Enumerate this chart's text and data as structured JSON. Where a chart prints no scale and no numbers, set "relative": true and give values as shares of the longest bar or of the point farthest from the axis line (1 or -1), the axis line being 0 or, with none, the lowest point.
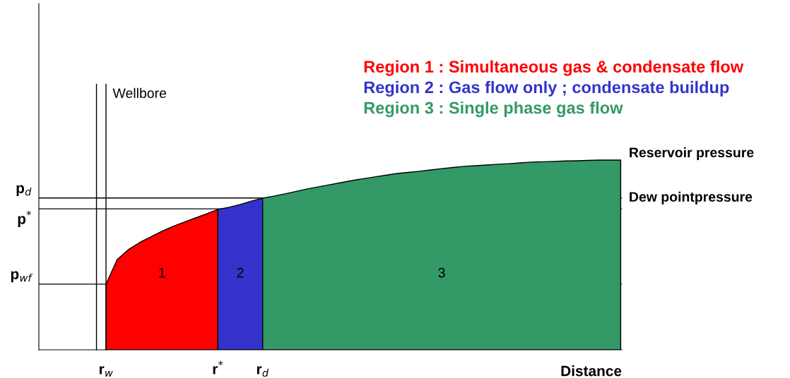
{
  "chart_data": {
    "type": "area",
    "relative": true,
    "xlabel": "Distance",
    "legend": "top right",
    "categories": [
      null,
      null,
      null,
      null,
      null,
      null,
      "r$_{w}$",
      null,
      null,
      null,
      null,
      null,
      null,
      null,
      null,
      null,
      "r$^{*}$",
      null,
      null,
      null,
      "r$_{d}$",
      null,
      null,
      null,
      null,
      null,
      null,
      null,
      null,
      null,
      null,
      null,
      null,
      null,
      null,
      null,
      null,
      null,
      null,
      null,
      null,
      null,
      null,
      null,
      null,
      null,
      null,
      null,
      null,
      null,
      null,
      null,
      null
    ],
    "series": [
      {
        "name": "Region 1 : Simultaneous gas & condensate flow",
        "color": "#ff0000",
        "values": [
          null,
          null,
          null,
          null,
          null,
          null,
          0.346,
          0.476,
          0.528,
          0.565,
          0.595,
          0.625,
          0.651,
          0.673,
          0.695,
          0.717,
          0.74,
          null,
          null,
          null,
          null,
          null,
          null,
          null,
          null,
          null,
          null,
          null,
          null,
          null,
          null,
          null,
          null,
          null,
          null,
          null,
          null,
          null,
          null,
          null,
          null,
          null,
          null,
          null,
          null,
          null,
          null,
          null,
          null,
          null,
          null,
          null,
          null
        ]
      },
      {
        "name": "Region 2 : Gas flow only ; condensate buildup",
        "color": "#3333cc",
        "values": [
          null,
          null,
          null,
          null,
          null,
          null,
          null,
          null,
          null,
          null,
          null,
          null,
          null,
          null,
          null,
          null,
          0.74,
          0.751,
          0.766,
          0.784,
          0.799,
          null,
          null,
          null,
          null,
          null,
          null,
          null,
          null,
          null,
          null,
          null,
          null,
          null,
          null,
          null,
          null,
          null,
          null,
          null,
          null,
          null,
          null,
          null,
          null,
          null,
          null,
          null,
          null,
          null,
          null,
          null,
          null
        ]
      },
      {
        "name": "Region 3 : Single phase gas flow",
        "color": "#339966",
        "values": [
          null,
          null,
          null,
          null,
          null,
          null,
          null,
          null,
          null,
          null,
          null,
          null,
          null,
          null,
          null,
          null,
          null,
          null,
          null,
          null,
          0.799,
          0.81,
          0.822,
          0.835,
          0.848,
          0.859,
          0.87,
          0.881,
          0.892,
          0.902,
          0.911,
          0.92,
          0.929,
          0.935,
          0.941,
          0.948,
          0.955,
          0.961,
          0.967,
          0.97,
          0.974,
          0.978,
          0.981,
          0.985,
          0.989,
          0.991,
          0.993,
          0.995,
          0.996,
          0.998,
          1.0,
          1.0,
          1.0
        ]
      }
    ],
    "ref_lines": [
      {
        "axis": "y",
        "value": 0.8,
        "label": "p$_{d}$",
        "color": "#000000"
      },
      {
        "axis": "y",
        "value": 0.743,
        "label": "p$^{*}$",
        "color": "#000000"
      },
      {
        "axis": "y",
        "value": 0.346,
        "label": "p$_{wf}$",
        "color": "#000000"
      }
    ],
    "annotations": [
      "1",
      "2",
      "3",
      "Wellbore",
      "Reservoir pressure",
      "Dew pointpressure"
    ]
  }
}
